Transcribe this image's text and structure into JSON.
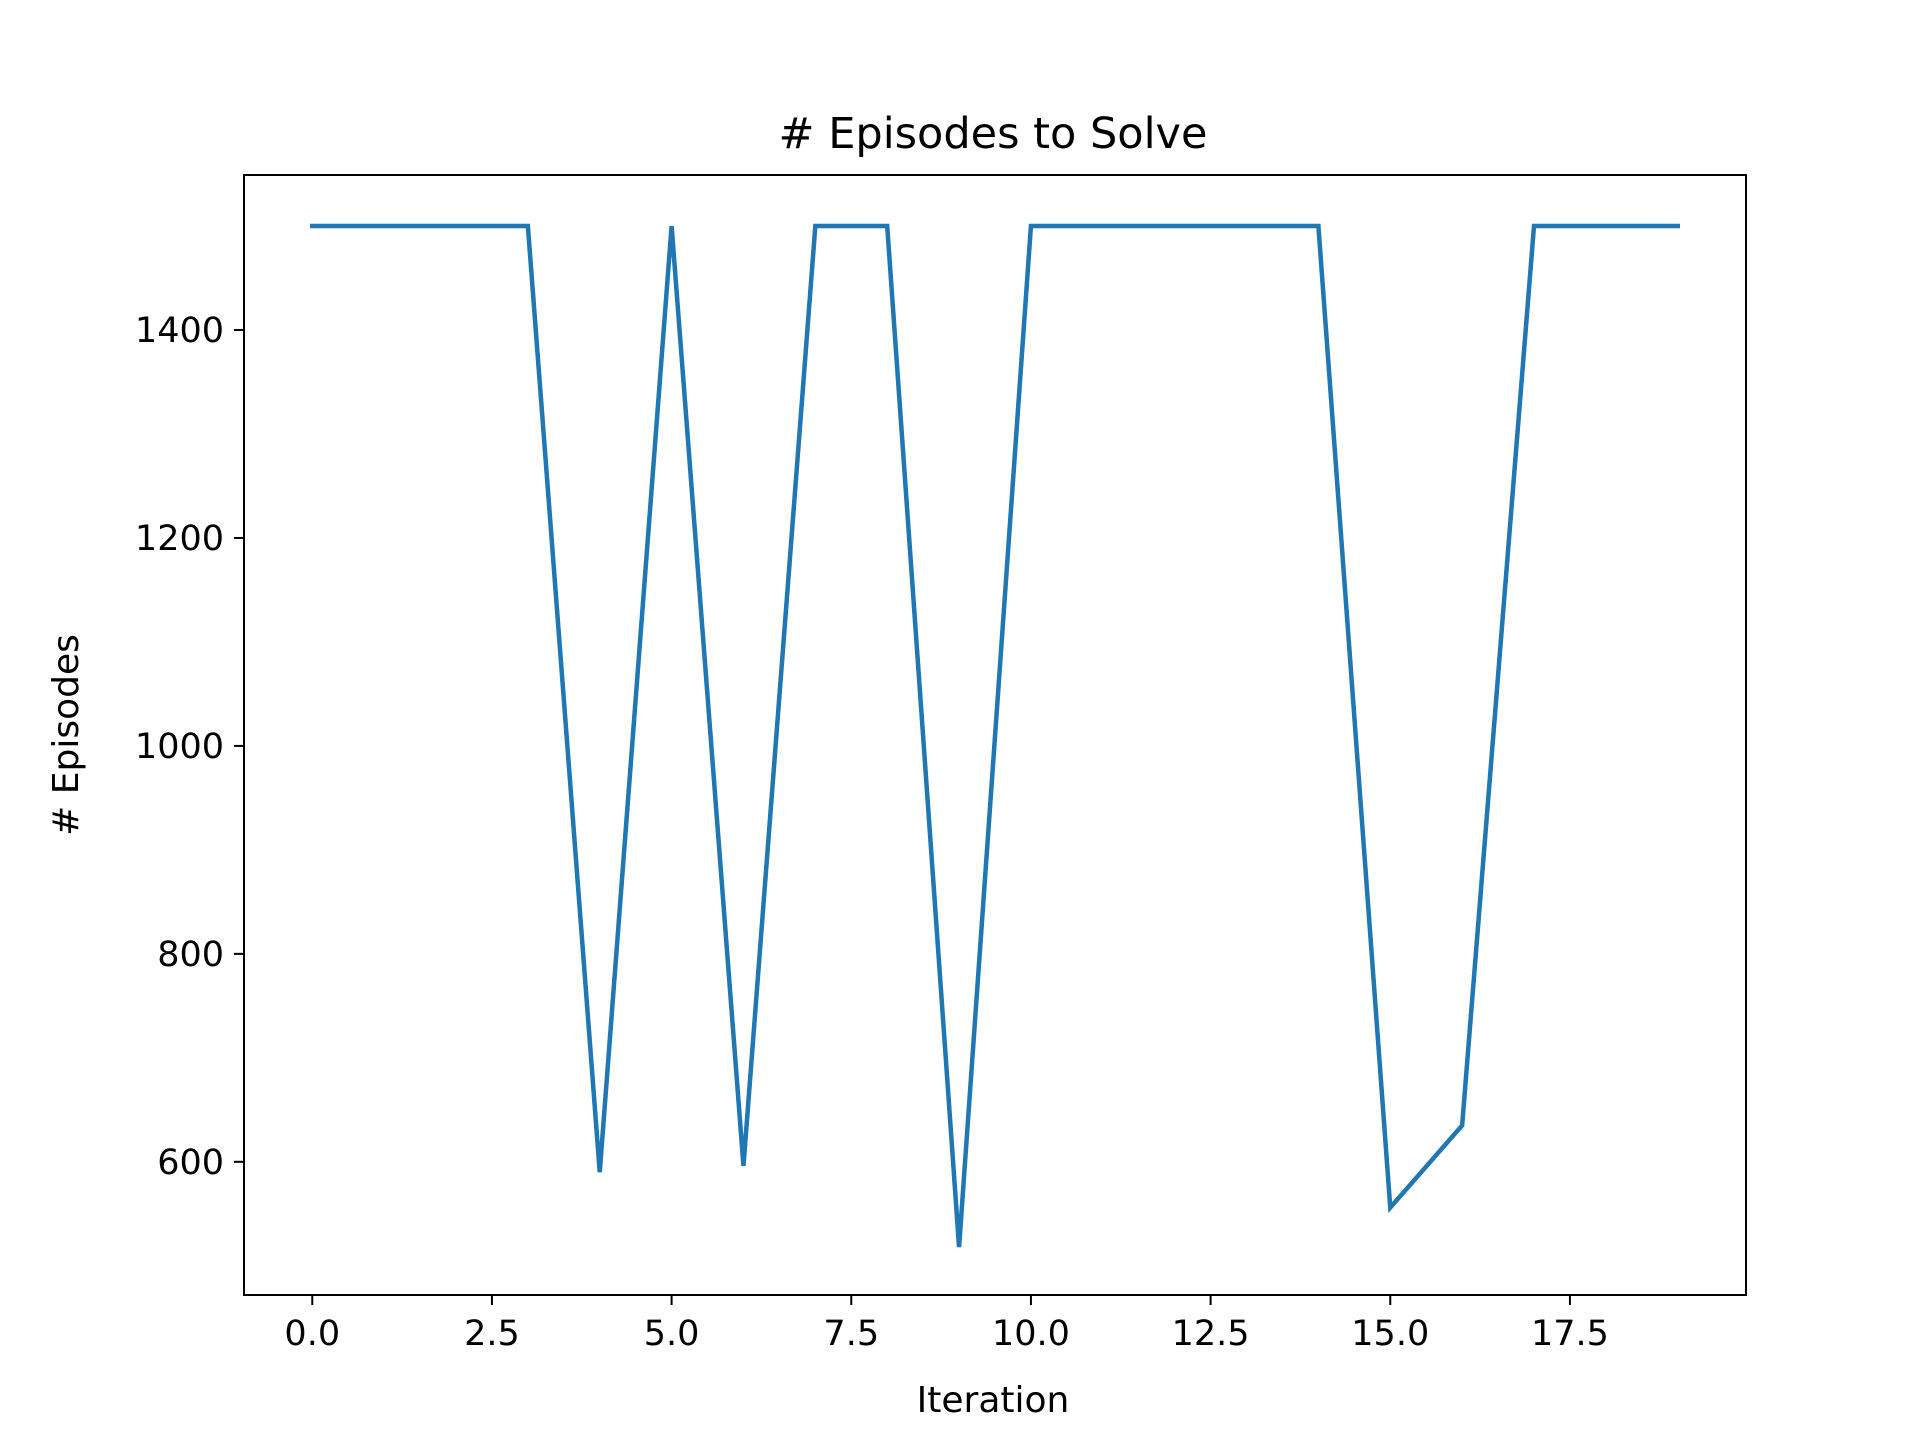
{
  "chart_data": {
    "type": "line",
    "title": "# Episodes to Solve",
    "xlabel": "Iteration",
    "ylabel": "# Episodes",
    "x": [
      0,
      1,
      2,
      3,
      4,
      5,
      6,
      7,
      8,
      9,
      10,
      11,
      12,
      13,
      14,
      15,
      16,
      17,
      18,
      19
    ],
    "series": [
      {
        "values": [
          1500,
          1500,
          1500,
          1500,
          590,
          1500,
          596,
          1500,
          1500,
          518,
          1500,
          1500,
          1500,
          1500,
          1500,
          556,
          635,
          1500,
          1500,
          1500
        ],
        "color": "#1f77b4"
      }
    ],
    "xlim": [
      -0.95,
      19.95
    ],
    "ylim": [
      471.9,
      1549.1
    ],
    "xticks": [
      0.0,
      2.5,
      5.0,
      7.5,
      10.0,
      12.5,
      15.0,
      17.5
    ],
    "xtick_labels": [
      "0.0",
      "2.5",
      "5.0",
      "7.5",
      "10.0",
      "12.5",
      "15.0",
      "17.5"
    ],
    "yticks": [
      600,
      800,
      1000,
      1200,
      1400
    ],
    "ytick_labels": [
      "600",
      "800",
      "1000",
      "1200",
      "1400"
    ],
    "grid": false,
    "legend": "none"
  }
}
